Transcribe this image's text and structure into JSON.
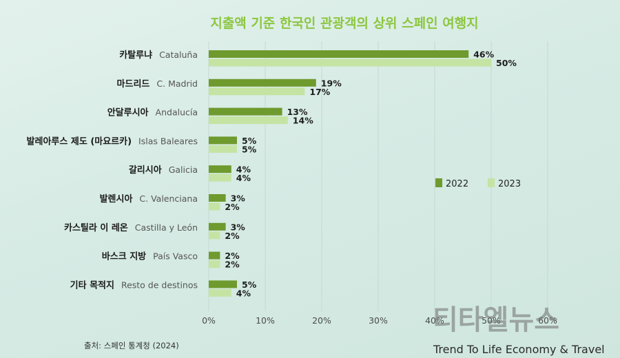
{
  "chart_data": {
    "type": "bar",
    "title": "지출액 기준 한국인 관광객의 상위 스페인 여행지",
    "categories": [
      {
        "ko": "카탈루냐",
        "es": "Cataluña"
      },
      {
        "ko": "마드리드",
        "es": "C. Madrid"
      },
      {
        "ko": "안달루시아",
        "es": "Andalucía"
      },
      {
        "ko": "발레아루스 제도 (마요르카)",
        "es": "Islas Baleares"
      },
      {
        "ko": "갈리시아",
        "es": "Galicia"
      },
      {
        "ko": "발렌시아",
        "es": "C. Valenciana"
      },
      {
        "ko": "카스틸라 이 레온",
        "es": "Castilla y León"
      },
      {
        "ko": "바스크 지방",
        "es": "País Vasco"
      },
      {
        "ko": "기타 목적지",
        "es": "Resto de destinos"
      }
    ],
    "series": [
      {
        "name": "2022",
        "color": "#6f9a2e",
        "values": [
          46,
          19,
          13,
          5,
          4,
          3,
          3,
          2,
          5
        ]
      },
      {
        "name": "2023",
        "color": "#c5e3a3",
        "values": [
          50,
          17,
          14,
          5,
          4,
          2,
          2,
          2,
          4
        ]
      }
    ],
    "value_suffix": "%",
    "xlim": [
      0,
      60
    ],
    "xticks": [
      "0%",
      "10%",
      "20%",
      "30%",
      "40%",
      "50%",
      "60%"
    ],
    "grid": true,
    "legend_position": "right"
  },
  "source": "출처: 스페인 통계청 (2024)",
  "watermark": {
    "main": "티타엘뉴스",
    "sub": "Trend To Life Economy & Travel"
  }
}
